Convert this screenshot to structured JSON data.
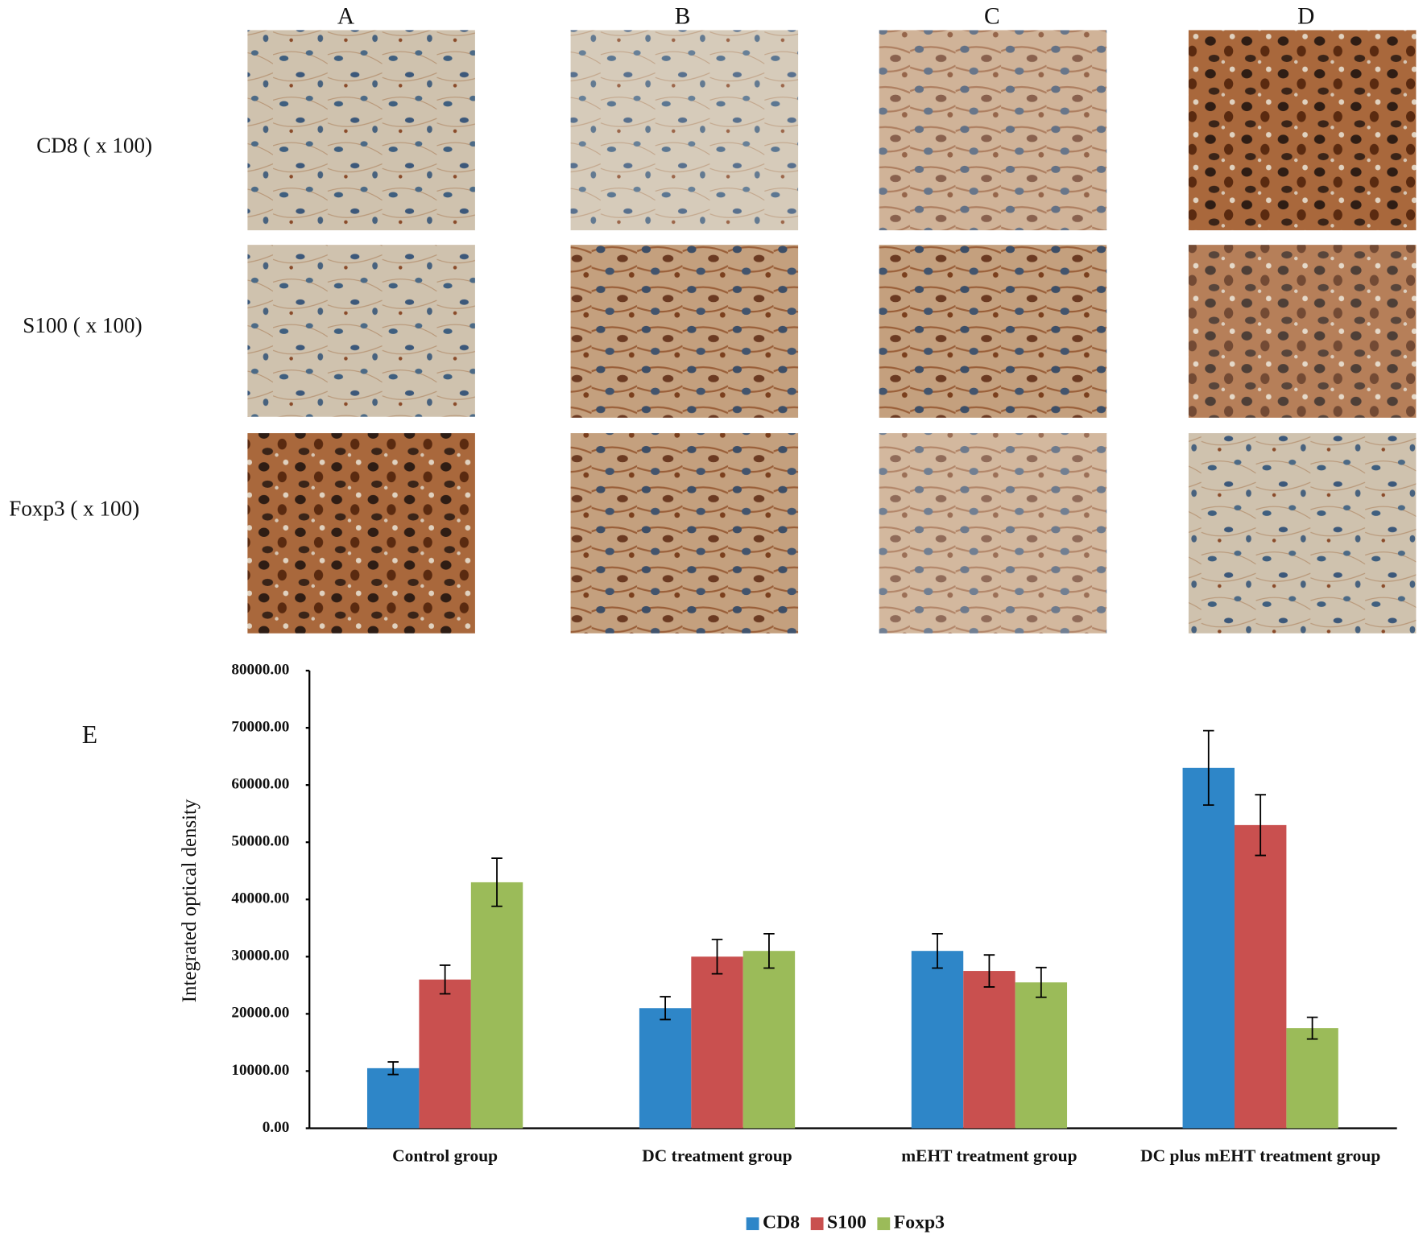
{
  "panels": {
    "columns": [
      "A",
      "B",
      "C",
      "D"
    ],
    "rows": [
      "CD8 ( x 100)",
      "S100 ( x 100)",
      "Foxp3 ( x 100)"
    ],
    "label": "E"
  },
  "chart_data": {
    "type": "bar",
    "ylabel": "Integrated optical density",
    "categories": [
      "Control group",
      "DC  treatment group",
      "mEHT treatment group",
      "DC  plus mEHT treatment group"
    ],
    "series": [
      {
        "name": "CD8",
        "color": "#2e86c8",
        "values": [
          10500,
          21000,
          31000,
          63000
        ],
        "errors": [
          1100,
          2000,
          3000,
          6500
        ]
      },
      {
        "name": "S100",
        "color": "#c9504f",
        "values": [
          26000,
          30000,
          27500,
          53000
        ],
        "errors": [
          2500,
          3000,
          2800,
          5300
        ]
      },
      {
        "name": "Foxp3",
        "color": "#9bbb59",
        "values": [
          43000,
          31000,
          25500,
          17500
        ],
        "errors": [
          4200,
          3000,
          2600,
          1900
        ]
      }
    ],
    "ylim": [
      0,
      80000
    ],
    "yticks": [
      {
        "value": 0,
        "label": "0.00"
      },
      {
        "value": 10000,
        "label": "10000.00"
      },
      {
        "value": 20000,
        "label": "20000.00"
      },
      {
        "value": 30000,
        "label": "30000.00"
      },
      {
        "value": 40000,
        "label": "40000.00"
      },
      {
        "value": 50000,
        "label": "50000.00"
      },
      {
        "value": 60000,
        "label": "60000.00"
      },
      {
        "value": 70000,
        "label": "70000.00"
      },
      {
        "value": 80000,
        "label": "80000.00"
      }
    ],
    "grid": false,
    "legend": "bottom"
  }
}
